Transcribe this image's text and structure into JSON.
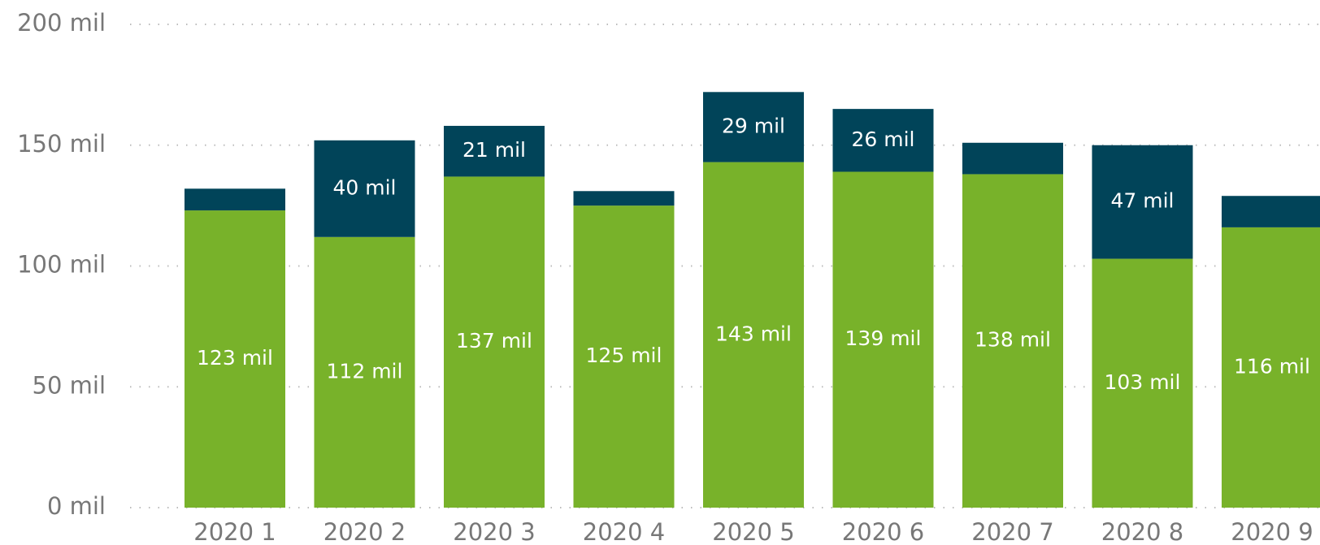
{
  "chart_data": {
    "type": "stacked_bar",
    "categories": [
      "2020 1",
      "2020 2",
      "2020 3",
      "2020 4",
      "2020 5",
      "2020 6",
      "2020 7",
      "2020 8",
      "2020 9"
    ],
    "series": [
      {
        "color": "#78b22a",
        "values": [
          123,
          112,
          137,
          125,
          143,
          139,
          138,
          103,
          116
        ],
        "value_labels": [
          "123 mil",
          "112 mil",
          "137 mil",
          "125 mil",
          "143 mil",
          "139 mil",
          "138 mil",
          "103 mil",
          "116 mil"
        ]
      },
      {
        "color": "#014459",
        "values": [
          9,
          40,
          21,
          6,
          29,
          26,
          13,
          47,
          13
        ],
        "value_labels": [
          null,
          "40 mil",
          "21 mil",
          null,
          "29 mil",
          "26 mil",
          null,
          "47 mil",
          null
        ]
      }
    ],
    "ylim": [
      0,
      200
    ],
    "yticks": [
      {
        "value": 0,
        "label": "0 mil"
      },
      {
        "value": 50,
        "label": "50 mil"
      },
      {
        "value": 100,
        "label": "100 mil"
      },
      {
        "value": 150,
        "label": "150 mil"
      },
      {
        "value": 200,
        "label": "200 mil"
      }
    ],
    "grid": true
  }
}
